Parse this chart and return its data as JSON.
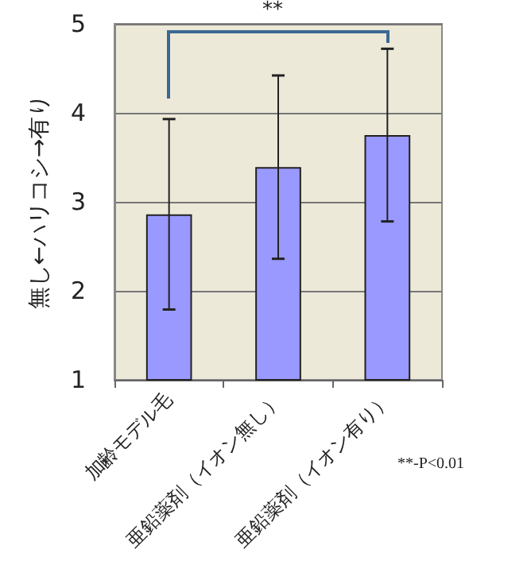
{
  "chart_data": {
    "type": "bar",
    "ylabel": "無し←ハリコシ→有り",
    "categories": [
      "加齢モデル毛",
      "亜鉛薬剤（イオン無し）",
      "亜鉛薬剤（イオン有り）"
    ],
    "values": [
      2.86,
      3.39,
      3.75
    ],
    "errors": [
      1.07,
      1.03,
      0.97
    ],
    "color": "#9999ff",
    "ylim": [
      1,
      5
    ],
    "yticks": [
      1,
      2,
      3,
      4,
      5
    ],
    "grid": "y",
    "annotations": [
      "**",
      "**-P<0.01"
    ]
  }
}
